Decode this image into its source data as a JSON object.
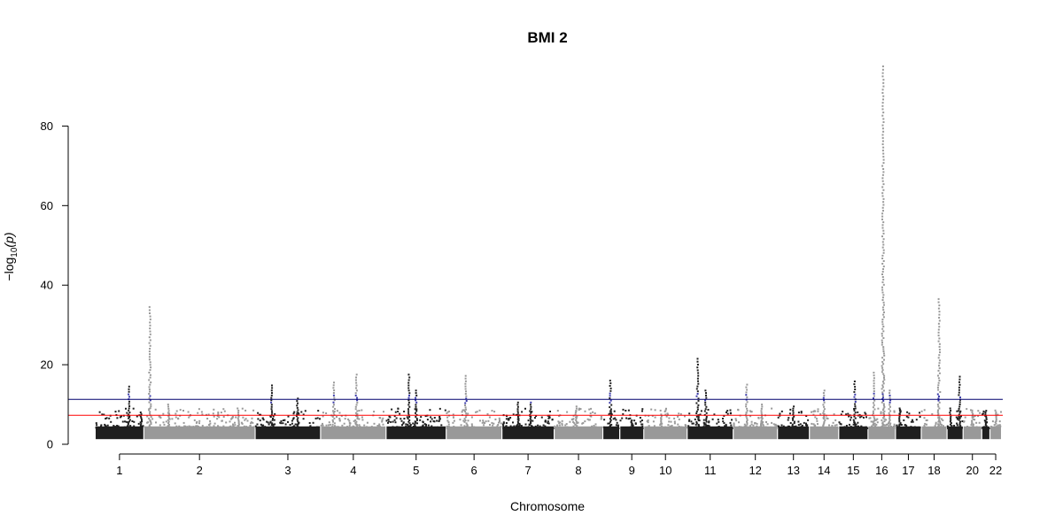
{
  "chart_data": {
    "type": "scatter",
    "subtype": "manhattan",
    "title": "BMI 2",
    "xlabel": "Chromosome",
    "ylabel": "-log10(p)",
    "ylabel_parts": {
      "prefix": "−log",
      "sub": "10",
      "arg": "(p)"
    },
    "ylim": [
      0,
      95
    ],
    "yticks": [
      0,
      20,
      40,
      60,
      80
    ],
    "chromosomes": [
      {
        "label": "1",
        "show_label": true,
        "color": "#1f1f1f",
        "peaks": [
          {
            "pos": 0.7,
            "max": 14.5
          },
          {
            "pos": 0.95,
            "max": 8.0
          }
        ]
      },
      {
        "label": "2",
        "show_label": true,
        "color": "#999999",
        "peaks": [
          {
            "pos": 0.05,
            "max": 34.5
          },
          {
            "pos": 0.22,
            "max": 10.0
          },
          {
            "pos": 0.85,
            "max": 9.0
          }
        ]
      },
      {
        "label": "3",
        "show_label": true,
        "color": "#1f1f1f",
        "peaks": [
          {
            "pos": 0.25,
            "max": 14.8
          },
          {
            "pos": 0.65,
            "max": 11.5
          }
        ]
      },
      {
        "label": "4",
        "show_label": true,
        "color": "#999999",
        "peaks": [
          {
            "pos": 0.55,
            "max": 17.5
          },
          {
            "pos": 0.2,
            "max": 15.5
          }
        ]
      },
      {
        "label": "5",
        "show_label": true,
        "color": "#1f1f1f",
        "peaks": [
          {
            "pos": 0.38,
            "max": 17.5
          },
          {
            "pos": 0.5,
            "max": 13.5
          }
        ]
      },
      {
        "label": "6",
        "show_label": true,
        "color": "#999999",
        "peaks": [
          {
            "pos": 0.35,
            "max": 17.2
          }
        ]
      },
      {
        "label": "7",
        "show_label": true,
        "color": "#1f1f1f",
        "peaks": [
          {
            "pos": 0.3,
            "max": 10.5
          },
          {
            "pos": 0.55,
            "max": 10.5
          }
        ]
      },
      {
        "label": "8",
        "show_label": true,
        "color": "#999999",
        "peaks": [
          {
            "pos": 0.45,
            "max": 9.5
          }
        ]
      },
      {
        "label": "",
        "show_label": false,
        "color": "#1f1f1f",
        "peaks": [
          {
            "pos": 0.45,
            "max": 16.0
          }
        ]
      },
      {
        "label": "9",
        "show_label": true,
        "color": "#1f1f1f",
        "peaks": [
          {
            "pos": 0.5,
            "max": 6.0
          }
        ]
      },
      {
        "label": "10",
        "show_label": true,
        "color": "#999999",
        "peaks": [
          {
            "pos": 0.4,
            "max": 7.5
          }
        ]
      },
      {
        "label": "11",
        "show_label": true,
        "color": "#1f1f1f",
        "peaks": [
          {
            "pos": 0.22,
            "max": 21.5
          },
          {
            "pos": 0.4,
            "max": 13.5
          }
        ]
      },
      {
        "label": "12",
        "show_label": true,
        "color": "#999999",
        "peaks": [
          {
            "pos": 0.3,
            "max": 15.0
          },
          {
            "pos": 0.65,
            "max": 10.0
          }
        ]
      },
      {
        "label": "13",
        "show_label": true,
        "color": "#1f1f1f",
        "peaks": [
          {
            "pos": 0.5,
            "max": 9.5
          }
        ]
      },
      {
        "label": "14",
        "show_label": true,
        "color": "#999999",
        "peaks": [
          {
            "pos": 0.5,
            "max": 13.5
          }
        ]
      },
      {
        "label": "15",
        "show_label": true,
        "color": "#1f1f1f",
        "peaks": [
          {
            "pos": 0.55,
            "max": 15.8
          }
        ]
      },
      {
        "label": "16",
        "show_label": true,
        "color": "#999999",
        "peaks": [
          {
            "pos": 0.55,
            "max": 95.0
          },
          {
            "pos": 0.2,
            "max": 18.0
          },
          {
            "pos": 0.8,
            "max": 13.5
          }
        ]
      },
      {
        "label": "17",
        "show_label": true,
        "color": "#1f1f1f",
        "peaks": [
          {
            "pos": 0.15,
            "max": 9.0
          }
        ]
      },
      {
        "label": "18",
        "show_label": true,
        "color": "#999999",
        "peaks": [
          {
            "pos": 0.7,
            "max": 36.5
          }
        ]
      },
      {
        "label": "",
        "show_label": false,
        "color": "#1f1f1f",
        "peaks": [
          {
            "pos": 0.8,
            "max": 17.0
          },
          {
            "pos": 0.2,
            "max": 9.0
          }
        ]
      },
      {
        "label": "20",
        "show_label": true,
        "color": "#999999",
        "peaks": [
          {
            "pos": 0.5,
            "max": 8.5
          }
        ]
      },
      {
        "label": "",
        "show_label": false,
        "color": "#1f1f1f",
        "peaks": [
          {
            "pos": 0.5,
            "max": 8.0
          }
        ]
      },
      {
        "label": "22",
        "show_label": true,
        "color": "#999999",
        "peaks": [
          {
            "pos": 0.5,
            "max": 8.5
          }
        ]
      }
    ],
    "significance_lines": [
      {
        "name": "suggestive",
        "value": 11.3,
        "color": "#00006e"
      },
      {
        "name": "genome-wide",
        "value": 7.3,
        "color": "#ff0000"
      }
    ],
    "highlight_color": "#3a3aa8",
    "grid": false,
    "legend": "none"
  }
}
